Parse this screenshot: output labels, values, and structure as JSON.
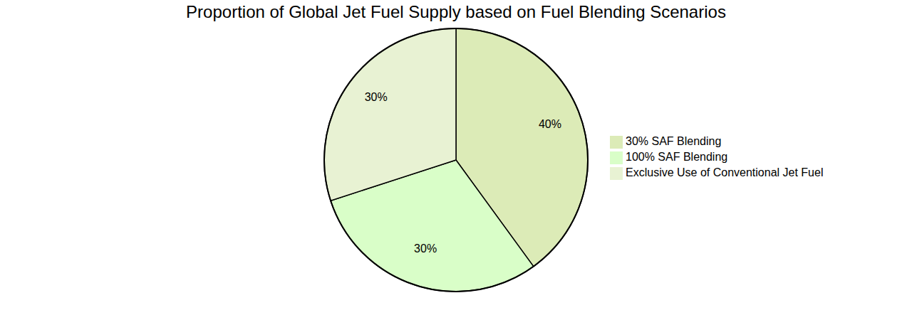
{
  "chart_data": {
    "type": "pie",
    "title": "Proportion of Global Jet Fuel Supply based on Fuel Blending Scenarios",
    "categories": [
      "30% SAF Blending",
      "100% SAF Blending",
      "Exclusive Use of Conventional Jet Fuel"
    ],
    "values": [
      40,
      30,
      30
    ],
    "value_labels": [
      "40%",
      "30%",
      "30%"
    ],
    "colors": [
      "#dcebb7",
      "#d9fec8",
      "#e8f2d3"
    ],
    "data_labels": true,
    "legend": "right"
  }
}
